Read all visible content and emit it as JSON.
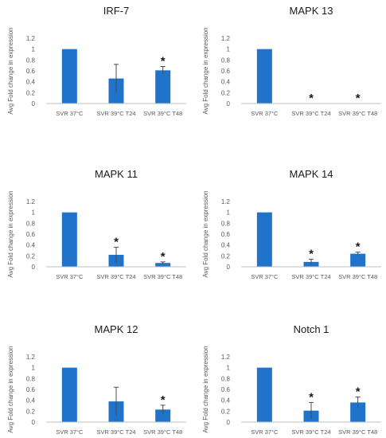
{
  "colors": {
    "bar": "#1f73c9",
    "axis": "#bfbfbf",
    "text": "#595959",
    "title": "#1a1a1a",
    "error": "#4d4d4d"
  },
  "shared_ylabel": "Avg Fold change in expression",
  "chart_data": [
    {
      "type": "bar",
      "title": "IRF-7",
      "categories": [
        "SVR 37°C",
        "SVR 39°C T24",
        "SVR 39°C T48"
      ],
      "values": [
        1.0,
        0.46,
        0.61
      ],
      "errors": [
        0.0,
        0.26,
        0.07
      ],
      "significance": [
        "",
        "",
        "*"
      ],
      "ylabel": "Avg Fold change in expression",
      "yticks": [
        "0",
        "0.2",
        "0.4",
        "0.6",
        "0.8",
        "1",
        "1.2"
      ],
      "ylim": [
        0,
        1.2
      ]
    },
    {
      "type": "bar",
      "title": "MAPK 13",
      "categories": [
        "SVR 37°C",
        "SVR 39°C T24",
        "SVR 39°C T48"
      ],
      "values": [
        1.0,
        0.0,
        0.0
      ],
      "errors": [
        0.0,
        0.0,
        0.0
      ],
      "significance": [
        "",
        "*",
        "*"
      ],
      "ylabel": "Avg Fold change in expression",
      "yticks": [
        "0",
        "0.2",
        "0.4",
        "0.6",
        "0.8",
        "1",
        "1.2"
      ],
      "ylim": [
        0,
        1.2
      ]
    },
    {
      "type": "bar",
      "title": "MAPK 11",
      "categories": [
        "SVR 37°C",
        "SVR 39°C T24",
        "SVR 39°C T48"
      ],
      "values": [
        1.0,
        0.22,
        0.07
      ],
      "errors": [
        0.0,
        0.14,
        0.02
      ],
      "significance": [
        "",
        "*",
        "*"
      ],
      "ylabel": "Avg Fold change in expression",
      "yticks": [
        "0",
        "0.2",
        "0.4",
        "0.6",
        "0.8",
        "1",
        "1.2"
      ],
      "ylim": [
        0,
        1.2
      ]
    },
    {
      "type": "bar",
      "title": "MAPK 14",
      "categories": [
        "SVR 37°C",
        "SVR 39°C T24",
        "SVR 39°C T48"
      ],
      "values": [
        1.0,
        0.09,
        0.24
      ],
      "errors": [
        0.0,
        0.05,
        0.03
      ],
      "significance": [
        "",
        "*",
        "*"
      ],
      "ylabel": "Avg Fold change in expression",
      "yticks": [
        "0",
        "0.2",
        "0.4",
        "0.6",
        "0.8",
        "1",
        "1.2"
      ],
      "ylim": [
        0,
        1.2
      ]
    },
    {
      "type": "bar",
      "title": "MAPK 12",
      "categories": [
        "SVR 37°C",
        "SVR 39°C T24",
        "SVR 39°C T48"
      ],
      "values": [
        1.0,
        0.38,
        0.23
      ],
      "errors": [
        0.0,
        0.26,
        0.08
      ],
      "significance": [
        "",
        "",
        "*"
      ],
      "ylabel": "Avg Fold change in expression",
      "yticks": [
        "0",
        "0.2",
        "0.4",
        "0.6",
        "0.8",
        "1",
        "1.2"
      ],
      "ylim": [
        0,
        1.2
      ]
    },
    {
      "type": "bar",
      "title": "Notch 1",
      "categories": [
        "SVR 37°C",
        "SVR 39°C T24",
        "SVR 39°C T48"
      ],
      "values": [
        1.0,
        0.21,
        0.36
      ],
      "errors": [
        0.0,
        0.15,
        0.1
      ],
      "significance": [
        "",
        "*",
        "*"
      ],
      "ylabel": "Avg Fold change in expression",
      "yticks": [
        "0",
        "0.2",
        "0.4",
        "0.6",
        "0.8",
        "1",
        "1.2"
      ],
      "ylim": [
        0,
        1.2
      ]
    }
  ]
}
